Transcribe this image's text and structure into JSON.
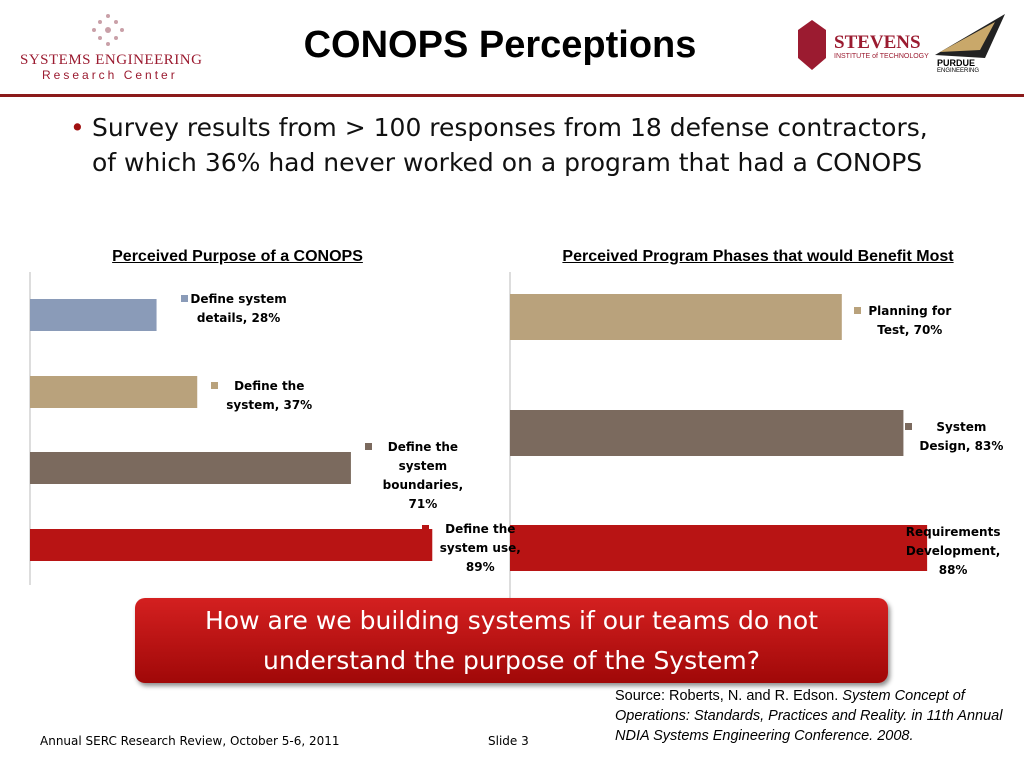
{
  "header": {
    "title": "CONOPS Perceptions",
    "logo_left": [
      "SYSTEMS ENGINEERING",
      "Research Center"
    ],
    "logo_right": [
      "STEVENS",
      "INSTITUTE of TECHNOLOGY",
      "PURDUE",
      "ENGINEERING"
    ]
  },
  "bullet": "Survey results from > 100 responses from 18 defense contractors, of which 36% had never worked on a program that had a CONOPS",
  "chart_data": [
    {
      "type": "bar",
      "orientation": "horizontal",
      "title": "Perceived Purpose of a CONOPS",
      "values": [
        28,
        37,
        71,
        89
      ],
      "value_labels": [
        "Define system details, 28%",
        "Define the system, 37%",
        "Define the system boundaries, 71%",
        "Define the system use, 89%"
      ],
      "colors": [
        "#8a9bb8",
        "#b9a27c",
        "#7b6a5e",
        "#b81414"
      ]
    },
    {
      "type": "bar",
      "orientation": "horizontal",
      "title": "Perceived Program Phases that would Benefit Most",
      "values": [
        70,
        83,
        88
      ],
      "value_labels": [
        "Planning for Test, 70%",
        "System Design, 83%",
        "Requirements Development, 88%"
      ],
      "colors": [
        "#b9a27c",
        "#7b6a5e",
        "#b81414"
      ]
    }
  ],
  "callout": "How are we building systems if our teams do not understand the purpose of the System?",
  "source": {
    "text": "Source: Roberts, N. and R. Edson. ",
    "citation": "System Concept of Operations: Standards, Practices and Reality. in 11th Annual NDIA Systems Engineering Conference. 2008."
  },
  "footer": {
    "left": "Annual SERC Research Review, October 5-6, 2011",
    "slide": "Slide 3"
  }
}
